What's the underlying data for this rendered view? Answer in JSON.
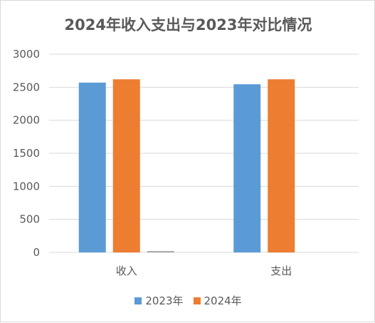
{
  "chart_data": {
    "type": "bar",
    "title": "2024年收入支出与2023年对比情况",
    "categories": [
      "收入",
      "支出"
    ],
    "series": [
      {
        "name": "2023年",
        "values": [
          2570,
          2545
        ],
        "color": "#5B9BD5"
      },
      {
        "name": "2024年",
        "values": [
          2620,
          2620
        ],
        "color": "#ED7D31"
      },
      {
        "name": "",
        "values": [
          20,
          0
        ],
        "color": "#A5A5A5"
      }
    ],
    "xlabel": "",
    "ylabel": "",
    "ylim": [
      0,
      3000
    ],
    "yticks": [
      "0",
      "500",
      "1000",
      "1500",
      "2000",
      "2500",
      "3000"
    ],
    "grid": true,
    "legend_position": "bottom"
  }
}
